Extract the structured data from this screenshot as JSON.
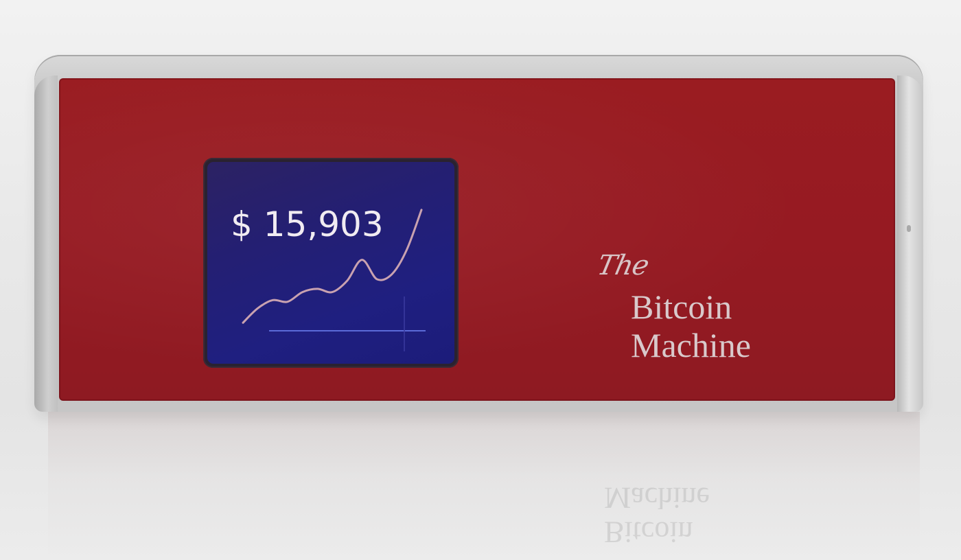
{
  "screen": {
    "price": "$ 15,903"
  },
  "logo": {
    "the": "The",
    "line1": "Bitcoin",
    "line2": "Machine"
  },
  "colors": {
    "panel_red": "#961a22",
    "screen_blue": "#221f78",
    "text_light": "#f1ecf2",
    "chart_line": "#c9a2b0",
    "shell_silver": "#c6c6c6"
  },
  "chart_data": {
    "type": "line",
    "x": [
      0,
      1,
      2,
      3,
      4,
      5,
      6,
      7,
      8,
      9,
      10,
      11,
      12
    ],
    "series": [
      {
        "values": [
          10,
          28,
          38,
          36,
          48,
          52,
          48,
          62,
          88,
          64,
          70,
          100,
          150
        ]
      }
    ],
    "ylim": [
      0,
      160
    ],
    "grid": false
  }
}
